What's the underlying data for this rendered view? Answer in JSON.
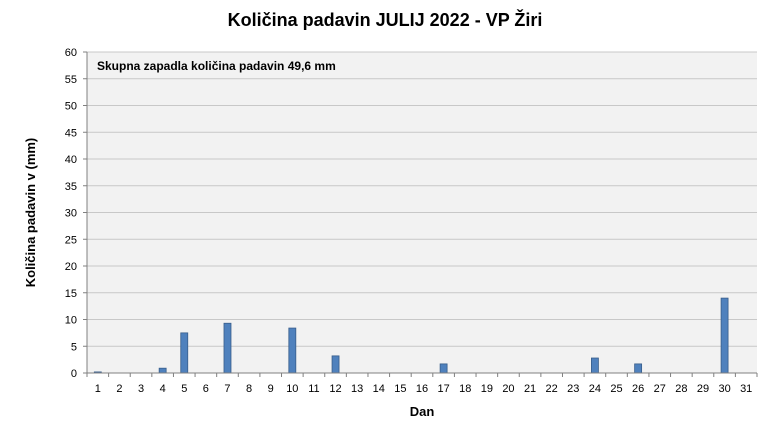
{
  "chart_data": {
    "type": "bar",
    "title": "Količina  padavin JULIJ 2022 - VP Žiri",
    "xlabel": "Dan",
    "ylabel": "Količina padavin v  (mm)",
    "annotation": "Skupna zapadla količina padavin 49,6 mm",
    "ylim": [
      0,
      60
    ],
    "ytick_step": 5,
    "grid": true,
    "legend": "none",
    "categories": [
      "1",
      "2",
      "3",
      "4",
      "5",
      "6",
      "7",
      "8",
      "9",
      "10",
      "11",
      "12",
      "13",
      "14",
      "15",
      "16",
      "17",
      "18",
      "19",
      "20",
      "21",
      "22",
      "23",
      "24",
      "25",
      "26",
      "27",
      "28",
      "29",
      "30",
      "31"
    ],
    "values": [
      0.2,
      0,
      0,
      0.9,
      7.5,
      0,
      9.3,
      0,
      0,
      8.4,
      0,
      3.2,
      0,
      0,
      0,
      0,
      1.7,
      0,
      0,
      0,
      0,
      0,
      0,
      2.8,
      0,
      1.7,
      0,
      0,
      0,
      14.0,
      0
    ],
    "colors": {
      "bar": "#4f81bd",
      "bar_stroke": "#385d8a",
      "plot_bg": "#f2f2f2",
      "grid": "#c8c8c8",
      "axis": "#808080"
    }
  }
}
